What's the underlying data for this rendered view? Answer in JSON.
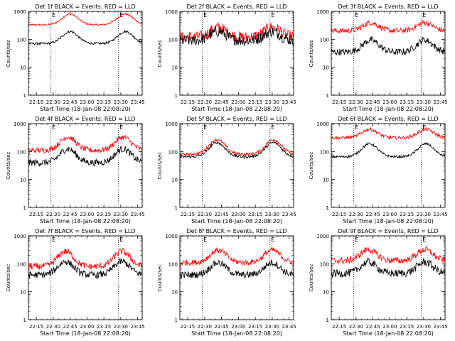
{
  "chart_data": [
    {
      "type": "line",
      "title": "Det 1f BLACK = Events, RED = LLD",
      "ylabel": "Counts/sec",
      "xlabel": "Start Time (18-Jan-08 22:08:20)",
      "x_ticks": [
        "22:15",
        "22:30",
        "22:45",
        "23:00",
        "23:15",
        "23:30",
        "23:45"
      ],
      "y_ticks": [
        "1",
        "10",
        "100",
        "1000"
      ],
      "ylim": [
        1,
        1000
      ],
      "yscale": "log",
      "x_range_min": [
        0,
        101
      ],
      "markers": [
        {
          "label": "E",
          "x": 20
        },
        {
          "label": "E",
          "x": 80
        }
      ],
      "series": [
        {
          "color": "#ff0000",
          "min_level": 330,
          "max_level": 800,
          "peaks": [
            37,
            86
          ],
          "noise": 0.03
        },
        {
          "color": "#000000",
          "min_level": 70,
          "max_level": 190,
          "peaks": [
            37,
            86
          ],
          "noise": 0.04
        }
      ]
    },
    {
      "type": "line",
      "title": "Det 2f BLACK = Events, RED = LLD",
      "ylabel": "Counts/sec",
      "xlabel": "Start Time (18-Jan-08 22:08:20)",
      "x_ticks": [
        "22:15",
        "22:30",
        "22:45",
        "23:00",
        "23:15",
        "23:30",
        "23:45"
      ],
      "y_ticks": [
        "1",
        "10",
        "100",
        "1000"
      ],
      "ylim": [
        1,
        1000
      ],
      "yscale": "log",
      "x_range_min": [
        0,
        101
      ],
      "markers": [
        {
          "label": "E",
          "x": 20
        },
        {
          "label": "E",
          "x": 80
        }
      ],
      "series": [
        {
          "color": "#ff0000",
          "min_level": 120,
          "max_level": 270,
          "peaks": [
            34,
            82
          ],
          "noise": 0.2
        },
        {
          "color": "#000000",
          "min_level": 90,
          "max_level": 190,
          "peaks": [
            34,
            82
          ],
          "noise": 0.2
        }
      ]
    },
    {
      "type": "line",
      "title": "Det 3f BLACK = Events, RED = LLD",
      "ylabel": "Counts/sec",
      "xlabel": "Start Time (18-Jan-08 22:08:20)",
      "x_ticks": [
        "22:15",
        "22:30",
        "22:45",
        "23:00",
        "23:15",
        "23:30",
        "23:45"
      ],
      "y_ticks": [
        "1",
        "10",
        "100",
        "1000"
      ],
      "ylim": [
        1,
        1000
      ],
      "yscale": "log",
      "x_range_min": [
        0,
        101
      ],
      "markers": [
        {
          "label": "E",
          "x": 20
        },
        {
          "label": "E",
          "x": 80
        }
      ],
      "series": [
        {
          "color": "#ff0000",
          "min_level": 200,
          "max_level": 390,
          "peaks": [
            35,
            83
          ],
          "noise": 0.1
        },
        {
          "color": "#000000",
          "min_level": 35,
          "max_level": 95,
          "peaks": [
            35,
            83
          ],
          "noise": 0.12
        }
      ]
    },
    {
      "type": "line",
      "title": "Det 4f BLACK = Events, RED = LLD",
      "ylabel": "Counts/sec",
      "xlabel": "Start Time (18-Jan-08 22:08:20)",
      "x_ticks": [
        "22:15",
        "22:30",
        "22:45",
        "23:00",
        "23:15",
        "23:30",
        "23:45"
      ],
      "y_ticks": [
        "1",
        "10",
        "100",
        "1000"
      ],
      "ylim": [
        1,
        1000
      ],
      "yscale": "log",
      "x_range_min": [
        0,
        101
      ],
      "markers": [
        {
          "label": "E",
          "x": 20
        },
        {
          "label": "E",
          "x": 80
        }
      ],
      "series": [
        {
          "color": "#ff0000",
          "min_level": 110,
          "max_level": 330,
          "peaks": [
            35,
            84
          ],
          "noise": 0.1
        },
        {
          "color": "#000000",
          "min_level": 40,
          "max_level": 125,
          "peaks": [
            35,
            84
          ],
          "noise": 0.12
        }
      ]
    },
    {
      "type": "line",
      "title": "Det 5f BLACK = Events, RED = LLD",
      "ylabel": "Counts/sec",
      "xlabel": "Start Time (18-Jan-08 22:08:20)",
      "x_ticks": [
        "22:15",
        "22:30",
        "22:45",
        "23:00",
        "23:15",
        "23:30",
        "23:45"
      ],
      "y_ticks": [
        "1",
        "10",
        "100",
        "1000"
      ],
      "ylim": [
        1,
        1000
      ],
      "yscale": "log",
      "x_range_min": [
        0,
        101
      ],
      "markers": [
        {
          "label": "E",
          "x": 20
        },
        {
          "label": "E",
          "x": 80
        }
      ],
      "series": [
        {
          "color": "#ff0000",
          "min_level": 80,
          "max_level": 270,
          "peaks": [
            33,
            83
          ],
          "noise": 0.05
        },
        {
          "color": "#000000",
          "min_level": 65,
          "max_level": 210,
          "peaks": [
            33,
            83
          ],
          "noise": 0.05
        }
      ]
    },
    {
      "type": "line",
      "title": "Det 6f BLACK = Events, RED = LLD",
      "ylabel": "Counts/sec",
      "xlabel": "Start Time (18-Jan-08 22:08:20)",
      "x_ticks": [
        "22:15",
        "22:30",
        "22:45",
        "23:00",
        "23:15",
        "23:30",
        "23:45"
      ],
      "y_ticks": [
        "1",
        "10",
        "100",
        "1000"
      ],
      "ylim": [
        1,
        1000
      ],
      "yscale": "log",
      "x_range_min": [
        0,
        101
      ],
      "markers": [
        {
          "label": "E",
          "x": 20
        },
        {
          "label": "E",
          "x": 80
        }
      ],
      "series": [
        {
          "color": "#ff0000",
          "min_level": 310,
          "max_level": 620,
          "peaks": [
            34,
            84
          ],
          "noise": 0.06
        },
        {
          "color": "#000000",
          "min_level": 65,
          "max_level": 190,
          "peaks": [
            34,
            84
          ],
          "noise": 0.04
        }
      ]
    },
    {
      "type": "line",
      "title": "Det 7f BLACK = Events, RED = LLD",
      "ylabel": "Counts/sec",
      "xlabel": "Start Time (18-Jan-08 22:08:20)",
      "x_ticks": [
        "22:15",
        "22:30",
        "22:45",
        "23:00",
        "23:15",
        "23:30",
        "23:45"
      ],
      "y_ticks": [
        "1",
        "10",
        "100",
        "1000"
      ],
      "ylim": [
        1,
        1000
      ],
      "yscale": "log",
      "x_range_min": [
        0,
        101
      ],
      "markers": [
        {
          "label": "E",
          "x": 20
        },
        {
          "label": "E",
          "x": 80
        }
      ],
      "series": [
        {
          "color": "#ff0000",
          "min_level": 80,
          "max_level": 280,
          "peaks": [
            33,
            83
          ],
          "noise": 0.12
        },
        {
          "color": "#000000",
          "min_level": 40,
          "max_level": 120,
          "peaks": [
            33,
            83
          ],
          "noise": 0.12
        }
      ]
    },
    {
      "type": "line",
      "title": "Det 8f BLACK = Events, RED = LLD",
      "ylabel": "Counts/sec",
      "xlabel": "Start Time (18-Jan-08 22:08:20)",
      "x_ticks": [
        "22:15",
        "22:30",
        "22:45",
        "23:00",
        "23:15",
        "23:30",
        "23:45"
      ],
      "y_ticks": [
        "1",
        "10",
        "100",
        "1000"
      ],
      "ylim": [
        1,
        1000
      ],
      "yscale": "log",
      "x_range_min": [
        0,
        101
      ],
      "markers": [
        {
          "label": "E",
          "x": 20
        },
        {
          "label": "E",
          "x": 80
        }
      ],
      "series": [
        {
          "color": "#ff0000",
          "min_level": 110,
          "max_level": 310,
          "peaks": [
            34,
            82
          ],
          "noise": 0.1
        },
        {
          "color": "#000000",
          "min_level": 40,
          "max_level": 110,
          "peaks": [
            34,
            82
          ],
          "noise": 0.12
        }
      ]
    },
    {
      "type": "line",
      "title": "Det 9f BLACK = Events, RED = LLD",
      "ylabel": "Counts/sec",
      "xlabel": "Start Time (18-Jan-08 22:08:20)",
      "x_ticks": [
        "22:15",
        "22:30",
        "22:45",
        "23:00",
        "23:15",
        "23:30",
        "23:45"
      ],
      "y_ticks": [
        "1",
        "10",
        "100",
        "1000"
      ],
      "ylim": [
        1,
        1000
      ],
      "yscale": "log",
      "x_range_min": [
        0,
        101
      ],
      "markers": [
        {
          "label": "E",
          "x": 20
        },
        {
          "label": "E",
          "x": 80
        }
      ],
      "series": [
        {
          "color": "#ff0000",
          "min_level": 130,
          "max_level": 320,
          "peaks": [
            33,
            83
          ],
          "noise": 0.12
        },
        {
          "color": "#000000",
          "min_level": 45,
          "max_level": 115,
          "peaks": [
            33,
            83
          ],
          "noise": 0.14
        }
      ]
    }
  ]
}
